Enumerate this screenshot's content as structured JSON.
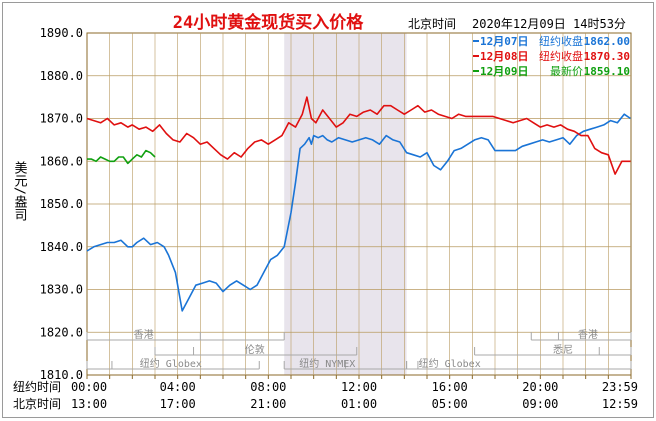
{
  "chart_data": {
    "type": "line",
    "title": "24小时黄金现货买入价格",
    "location_label": "北京时间",
    "timestamp": "2020年12月09日 14时53分",
    "ylabel": "美元/盎司",
    "ylim": [
      1810,
      1890
    ],
    "yticks": [
      "1890.0",
      "1880.0",
      "1870.0",
      "1860.0",
      "1850.0",
      "1840.0",
      "1830.0",
      "1820.0",
      "1810.0"
    ],
    "x_axis_rows": [
      {
        "label": "纽约时间",
        "ticks": [
          "00:00",
          "04:00",
          "08:00",
          "12:00",
          "16:00",
          "20:00",
          "23:59"
        ]
      },
      {
        "label": "北京时间",
        "ticks": [
          "13:00",
          "17:00",
          "21:00",
          "01:00",
          "05:00",
          "09:00",
          "12:59"
        ]
      }
    ],
    "x_hours": [
      0,
      4,
      8,
      12,
      16,
      20,
      23.983
    ],
    "xlim": [
      0,
      24
    ],
    "highlight_band": [
      8.7,
      14.1
    ],
    "grid": true,
    "legend_position": "top-right",
    "series": [
      {
        "name": "12月07日",
        "legend_caption": "纽约收盘",
        "legend_value": "1862.00",
        "color": "#1a74d6",
        "x": [
          0.0,
          0.3,
          0.6,
          0.9,
          1.2,
          1.5,
          1.8,
          2.0,
          2.2,
          2.5,
          2.8,
          3.1,
          3.4,
          3.6,
          3.9,
          4.2,
          4.5,
          4.8,
          5.1,
          5.4,
          5.7,
          6.0,
          6.3,
          6.6,
          6.9,
          7.2,
          7.5,
          7.8,
          8.1,
          8.4,
          8.7,
          9.0,
          9.2,
          9.4,
          9.6,
          9.8,
          9.9,
          10.0,
          10.2,
          10.4,
          10.6,
          10.8,
          11.1,
          11.4,
          11.7,
          12.0,
          12.3,
          12.6,
          12.9,
          13.2,
          13.5,
          13.8,
          14.1,
          14.4,
          14.7,
          15.0,
          15.3,
          15.6,
          15.9,
          16.2,
          16.5,
          16.8,
          17.1,
          17.4,
          17.7,
          18.0,
          18.3,
          18.6,
          18.9,
          19.2,
          19.5,
          19.8,
          20.1,
          20.4,
          20.7,
          21.0,
          21.3,
          21.6,
          21.9,
          22.2,
          22.5,
          22.8,
          23.1,
          23.4,
          23.7,
          23.98
        ],
        "values": [
          1839,
          1840,
          1840.5,
          1841,
          1841,
          1841.5,
          1840,
          1840,
          1841,
          1842,
          1840.5,
          1841,
          1840,
          1838,
          1834,
          1825,
          1828,
          1831,
          1831.5,
          1832,
          1831.5,
          1829.5,
          1831,
          1832,
          1831,
          1830,
          1831,
          1834,
          1837,
          1838,
          1840,
          1848,
          1855,
          1863,
          1864,
          1865.5,
          1864,
          1866,
          1865.5,
          1866,
          1865,
          1864.5,
          1865.5,
          1865,
          1864.5,
          1865,
          1865.5,
          1865,
          1864,
          1866,
          1865,
          1864.5,
          1862,
          1861.5,
          1861,
          1862,
          1859,
          1858,
          1860,
          1862.5,
          1863,
          1864,
          1865,
          1865.5,
          1865,
          1862.5,
          1862.5,
          1862.5,
          1862.5,
          1863.5,
          1864,
          1864.5,
          1865,
          1864.5,
          1865,
          1865.5,
          1864,
          1866,
          1867,
          1867.5,
          1868,
          1868.5,
          1869.5,
          1869,
          1871,
          1870
        ]
      },
      {
        "name": "12月08日",
        "legend_caption": "纽约收盘",
        "legend_value": "1870.30",
        "color": "#e01010",
        "x": [
          0.0,
          0.3,
          0.6,
          0.9,
          1.2,
          1.5,
          1.8,
          2.0,
          2.3,
          2.6,
          2.9,
          3.2,
          3.5,
          3.8,
          4.1,
          4.4,
          4.7,
          5.0,
          5.3,
          5.6,
          5.9,
          6.2,
          6.5,
          6.8,
          7.1,
          7.4,
          7.7,
          8.0,
          8.3,
          8.6,
          8.9,
          9.2,
          9.5,
          9.7,
          9.9,
          10.1,
          10.4,
          10.7,
          11.0,
          11.3,
          11.6,
          11.9,
          12.2,
          12.5,
          12.8,
          13.1,
          13.4,
          13.7,
          14.0,
          14.3,
          14.6,
          14.9,
          15.2,
          15.5,
          15.8,
          16.1,
          16.4,
          16.7,
          17.0,
          17.3,
          17.6,
          17.9,
          18.2,
          18.5,
          18.8,
          19.1,
          19.4,
          19.7,
          20.0,
          20.3,
          20.6,
          20.9,
          21.2,
          21.5,
          21.8,
          22.1,
          22.4,
          22.7,
          23.0,
          23.3,
          23.6,
          23.98
        ],
        "values": [
          1870,
          1869.5,
          1869,
          1870,
          1868.5,
          1869,
          1868,
          1868.5,
          1867.5,
          1868,
          1867,
          1868.5,
          1866.5,
          1865,
          1864.5,
          1866.5,
          1865.5,
          1864,
          1864.5,
          1863,
          1861.5,
          1860.5,
          1862,
          1861,
          1863,
          1864.5,
          1865,
          1864,
          1865,
          1866,
          1869,
          1868,
          1871,
          1875,
          1870,
          1869,
          1872,
          1870,
          1868,
          1869,
          1871,
          1870.5,
          1871.5,
          1872,
          1871,
          1873,
          1873,
          1872,
          1871,
          1872,
          1873,
          1871.5,
          1872,
          1871,
          1870.5,
          1870,
          1871,
          1870.5,
          1870.5,
          1870.5,
          1870.5,
          1870.5,
          1870,
          1869.5,
          1869,
          1869.5,
          1870,
          1869,
          1868,
          1868.5,
          1868,
          1868.5,
          1867.5,
          1867,
          1866,
          1866,
          1863,
          1862,
          1861.5,
          1857,
          1860,
          1860
        ]
      },
      {
        "name": "12月09日",
        "legend_caption": "最新价",
        "legend_value": "1859.10",
        "color": "#10a010",
        "x": [
          0.0,
          0.2,
          0.4,
          0.6,
          0.8,
          1.0,
          1.2,
          1.4,
          1.6,
          1.8,
          2.0,
          2.2,
          2.4,
          2.6,
          2.8,
          3.0
        ],
        "values": [
          1860.5,
          1860.5,
          1860,
          1861,
          1860.5,
          1860,
          1860,
          1861,
          1861,
          1859.5,
          1860.5,
          1861.5,
          1861,
          1862.5,
          1862,
          1861
        ]
      }
    ],
    "session_rows": [
      {
        "name": "香港",
        "from": 0,
        "to": 8.7,
        "label_at": 2.5,
        "divider_at": 5.0
      },
      {
        "name": "香港",
        "from": 19.6,
        "to": 24,
        "label_at": 22.1,
        "divider_at": 20.8
      },
      {
        "name": "伦敦",
        "from": 3,
        "to": 11.9,
        "label_at": 7.4,
        "divider_at": 4.7
      },
      {
        "name": "悉尼",
        "from": 17.1,
        "to": 24,
        "label_at": 21.0,
        "divider_at": 22.6
      },
      {
        "name": "纽约 Globex",
        "from": 0,
        "to": 7.6,
        "label_at": 3.7,
        "divider_at": 1.1
      },
      {
        "name": "纽约 NYMEX",
        "from": 8.7,
        "to": 14.1,
        "label_at": 10.6,
        "divider_at": 11.4
      },
      {
        "name": "纽约 Globex",
        "from": 14.1,
        "to": 24,
        "label_at": 16.0,
        "divider_at": 14.6
      }
    ]
  }
}
